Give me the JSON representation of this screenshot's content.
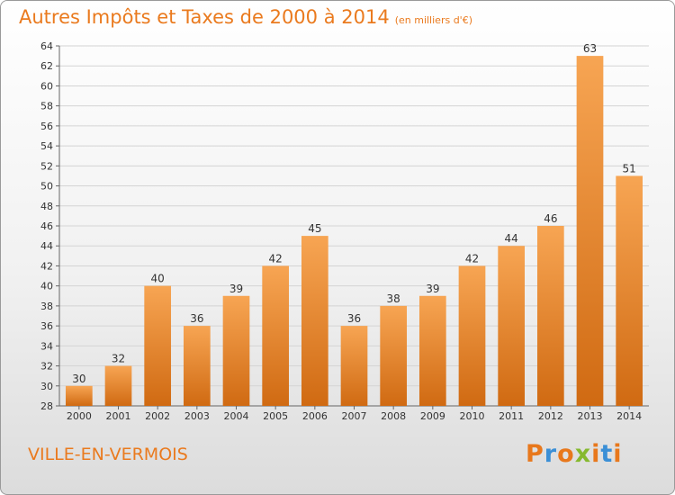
{
  "header": {
    "title": "Autres Impôts et Taxes de 2000 à 2014",
    "subtitle": "(en milliers d'€)"
  },
  "footer": {
    "commune": "VILLE-EN-VERMOIS",
    "logo": "Proxiti",
    "logo_colors": [
      "#e8781c",
      "#3b8fd6",
      "#e8781c",
      "#86b92e",
      "#e8781c",
      "#3b8fd6",
      "#e8781c"
    ]
  },
  "colors": {
    "bar_light": "#f7a553",
    "bar_dark": "#d06a12",
    "grid": "#d4d4d4",
    "accent": "#ea7a1e"
  },
  "chart_data": {
    "type": "bar",
    "title": "Autres Impôts et Taxes de 2000 à 2014",
    "subtitle": "(en milliers d'€)",
    "categories": [
      "2000",
      "2001",
      "2002",
      "2003",
      "2004",
      "2005",
      "2006",
      "2007",
      "2008",
      "2009",
      "2010",
      "2011",
      "2012",
      "2013",
      "2014"
    ],
    "values": [
      30,
      32,
      40,
      36,
      39,
      42,
      45,
      36,
      38,
      39,
      42,
      44,
      46,
      63,
      51
    ],
    "ylim": [
      28,
      64
    ],
    "yticks": [
      28,
      30,
      32,
      34,
      36,
      38,
      40,
      42,
      44,
      46,
      48,
      50,
      52,
      54,
      56,
      58,
      60,
      62,
      64
    ],
    "grid": true,
    "xlabel": "",
    "ylabel": ""
  }
}
